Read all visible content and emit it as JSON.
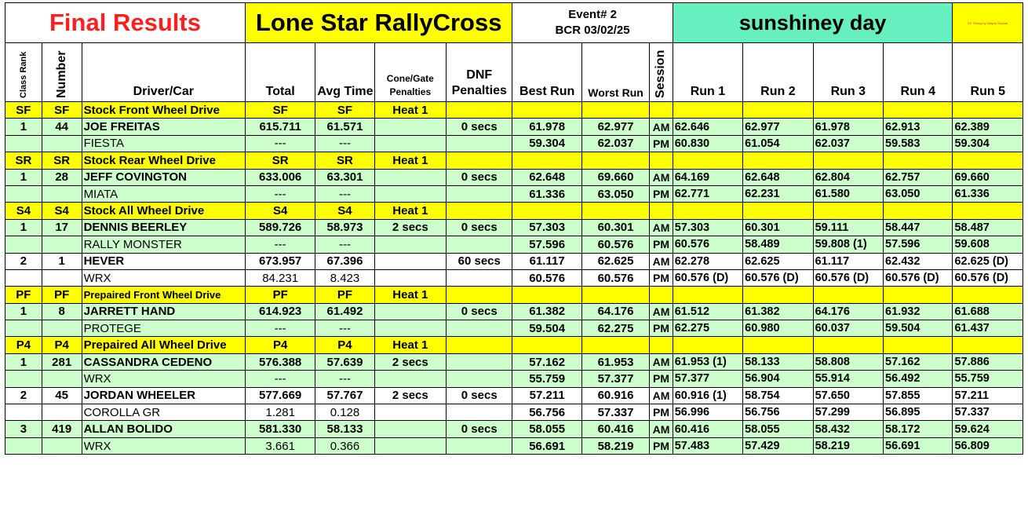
{
  "header": {
    "final": "Final Results",
    "series": "Lone Star RallyCross",
    "event_line1": "Event# 2",
    "event_line2": "BCR 03/02/25",
    "weather": "sunshiney day",
    "timing_credit": "EZ Timing by Wayne Stockel"
  },
  "columns": {
    "class_rank": "Class Rank",
    "number": "Number",
    "driver_car": "Driver/Car",
    "total": "Total",
    "avg_time": "Avg Time",
    "cone_gate": "Cone/Gate Penalties",
    "dnf": "DNF Penalties",
    "best_run": "Best Run",
    "worst_run": "Worst Run",
    "session": "Session",
    "run1": "Run 1",
    "run2": "Run 2",
    "run3": "Run 3",
    "run4": "Run 4",
    "run5": "Run 5"
  },
  "colors": {
    "class_row": "#ffff00",
    "green_row": "#ccffcc",
    "weather": "#66f0c0",
    "final_text": "#ff1f1f"
  },
  "rows": [
    {
      "kind": "cls",
      "small": false,
      "c": [
        "SF",
        "SF",
        "Stock Front Wheel Drive",
        "SF",
        "SF",
        "Heat 1",
        "",
        "",
        "",
        "",
        "",
        "",
        "",
        "",
        ""
      ]
    },
    {
      "kind": "g",
      "c": [
        "1",
        "44",
        "JOE FREITAS",
        "615.711",
        "61.571",
        "",
        "0 secs",
        "61.978",
        "62.977",
        "AM",
        "62.646",
        "62.977",
        "61.978",
        "62.913",
        "62.389"
      ]
    },
    {
      "kind": "g",
      "c": [
        "",
        "",
        "FIESTA",
        "---",
        "---",
        "",
        "",
        "59.304",
        "62.037",
        "PM",
        "60.830",
        "61.054",
        "62.037",
        "59.583",
        "59.304"
      ]
    },
    {
      "kind": "cls",
      "small": false,
      "c": [
        "SR",
        "SR",
        "Stock Rear Wheel Drive",
        "SR",
        "SR",
        "Heat 1",
        "",
        "",
        "",
        "",
        "",
        "",
        "",
        "",
        ""
      ]
    },
    {
      "kind": "g",
      "c": [
        "1",
        "28",
        "JEFF COVINGTON",
        "633.006",
        "63.301",
        "",
        "0 secs",
        "62.648",
        "69.660",
        "AM",
        "64.169",
        "62.648",
        "62.804",
        "62.757",
        "69.660"
      ]
    },
    {
      "kind": "g",
      "c": [
        "",
        "",
        "MIATA",
        "---",
        "---",
        "",
        "",
        "61.336",
        "63.050",
        "PM",
        "62.771",
        "62.231",
        "61.580",
        "63.050",
        "61.336"
      ]
    },
    {
      "kind": "cls",
      "small": false,
      "c": [
        "S4",
        "S4",
        "Stock All Wheel Drive",
        "S4",
        "S4",
        "Heat 1",
        "",
        "",
        "",
        "",
        "",
        "",
        "",
        "",
        ""
      ]
    },
    {
      "kind": "g",
      "c": [
        "1",
        "17",
        "DENNIS BEERLEY",
        "589.726",
        "58.973",
        "2 secs",
        "0 secs",
        "57.303",
        "60.301",
        "AM",
        "57.303",
        "60.301",
        "59.111",
        "58.447",
        "58.487"
      ]
    },
    {
      "kind": "g",
      "c": [
        "",
        "",
        "RALLY MONSTER",
        "---",
        "---",
        "",
        "",
        "57.596",
        "60.576",
        "PM",
        "60.576",
        "58.489",
        "59.808 (1)",
        "57.596",
        "59.608"
      ]
    },
    {
      "kind": "w",
      "c": [
        "2",
        "1",
        "HEVER",
        "673.957",
        "67.396",
        "",
        "60 secs",
        "61.117",
        "62.625",
        "AM",
        "62.278",
        "62.625",
        "61.117",
        "62.432",
        "62.625 (D)"
      ]
    },
    {
      "kind": "w",
      "c": [
        "",
        "",
        "WRX",
        "84.231",
        "8.423",
        "",
        "",
        "60.576",
        "60.576",
        "PM",
        "60.576 (D)",
        "60.576 (D)",
        "60.576 (D)",
        "60.576 (D)",
        "60.576 (D)"
      ]
    },
    {
      "kind": "cls",
      "small": true,
      "c": [
        "PF",
        "PF",
        "Prepaired Front Wheel Drive",
        "PF",
        "PF",
        "Heat 1",
        "",
        "",
        "",
        "",
        "",
        "",
        "",
        "",
        ""
      ]
    },
    {
      "kind": "g",
      "c": [
        "1",
        "8",
        "JARRETT HAND",
        "614.923",
        "61.492",
        "",
        "0 secs",
        "61.382",
        "64.176",
        "AM",
        "61.512",
        "61.382",
        "64.176",
        "61.932",
        "61.688"
      ]
    },
    {
      "kind": "g",
      "c": [
        "",
        "",
        "PROTEGE",
        "---",
        "---",
        "",
        "",
        "59.504",
        "62.275",
        "PM",
        "62.275",
        "60.980",
        "60.037",
        "59.504",
        "61.437"
      ]
    },
    {
      "kind": "cls",
      "small": false,
      "c": [
        "P4",
        "P4",
        "Prepaired All Wheel Drive",
        "P4",
        "P4",
        "Heat 1",
        "",
        "",
        "",
        "",
        "",
        "",
        "",
        "",
        ""
      ]
    },
    {
      "kind": "g",
      "c": [
        "1",
        "281",
        "CASSANDRA CEDENO",
        "576.388",
        "57.639",
        "2 secs",
        "",
        "57.162",
        "61.953",
        "AM",
        "61.953 (1)",
        "58.133",
        "58.808",
        "57.162",
        "57.886"
      ]
    },
    {
      "kind": "g",
      "c": [
        "",
        "",
        "WRX",
        "---",
        "---",
        "",
        "",
        "55.759",
        "57.377",
        "PM",
        "57.377",
        "56.904",
        "55.914",
        "56.492",
        "55.759"
      ]
    },
    {
      "kind": "w",
      "c": [
        "2",
        "45",
        "JORDAN WHEELER",
        "577.669",
        "57.767",
        "2 secs",
        "0 secs",
        "57.211",
        "60.916",
        "AM",
        "60.916 (1)",
        "58.754",
        "57.650",
        "57.855",
        "57.211"
      ]
    },
    {
      "kind": "w",
      "c": [
        "",
        "",
        "COROLLA GR",
        "1.281",
        "0.128",
        "",
        "",
        "56.756",
        "57.337",
        "PM",
        "56.996",
        "56.756",
        "57.299",
        "56.895",
        "57.337"
      ]
    },
    {
      "kind": "g",
      "c": [
        "3",
        "419",
        "ALLAN BOLIDO",
        "581.330",
        "58.133",
        "",
        "0 secs",
        "58.055",
        "60.416",
        "AM",
        "60.416",
        "58.055",
        "58.432",
        "58.172",
        "59.624"
      ]
    },
    {
      "kind": "g",
      "c": [
        "",
        "",
        "WRX",
        "3.661",
        "0.366",
        "",
        "",
        "56.691",
        "58.219",
        "PM",
        "57.483",
        "57.429",
        "58.219",
        "56.691",
        "56.809"
      ]
    }
  ]
}
